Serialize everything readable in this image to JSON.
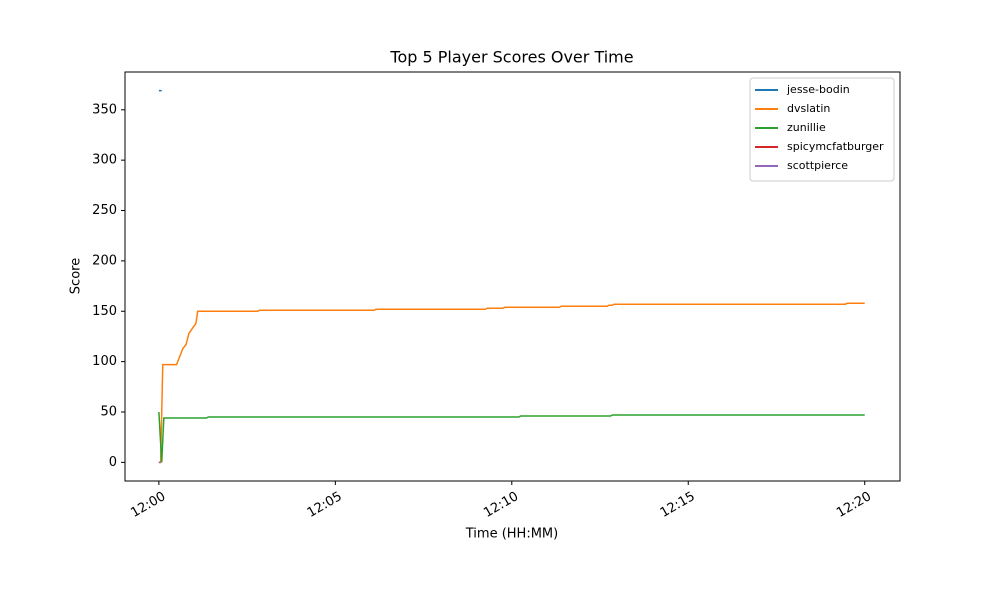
{
  "chart_data": {
    "type": "line",
    "title": "Top 5 Player Scores Over Time",
    "xlabel": "Time (HH:MM)",
    "ylabel": "Score",
    "xlim": [
      -0.96,
      21.0
    ],
    "ylim": [
      -18.5,
      387.5
    ],
    "xticks": [
      {
        "value": 0,
        "label": "12:00"
      },
      {
        "value": 5,
        "label": "12:05"
      },
      {
        "value": 10,
        "label": "12:10"
      },
      {
        "value": 15,
        "label": "12:15"
      },
      {
        "value": 20,
        "label": "12:20"
      }
    ],
    "yticks": [
      0,
      50,
      100,
      150,
      200,
      250,
      300,
      350
    ],
    "legend": "upper right",
    "series": [
      {
        "name": "jesse-bodin",
        "color": "#1f77b4",
        "x": [
          0,
          0.08
        ],
        "values": [
          369,
          369
        ]
      },
      {
        "name": "dvslatin",
        "color": "#ff7f0e",
        "x": [
          0,
          0.05,
          0.11,
          0.5,
          0.68,
          0.77,
          0.85,
          1.05,
          1.1,
          2.8,
          2.85,
          6.1,
          6.15,
          9.25,
          9.3,
          9.75,
          9.8,
          11.35,
          11.4,
          12.7,
          12.75,
          12.85,
          12.9,
          19.45,
          19.5,
          20.0
        ],
        "values": [
          0,
          0,
          97,
          97,
          113,
          117,
          128,
          138,
          150,
          150,
          151,
          151,
          152,
          152,
          153,
          153,
          154,
          154,
          155,
          155,
          156,
          156,
          157,
          157,
          158,
          158
        ]
      },
      {
        "name": "zunillie",
        "color": "#2ca02c",
        "x": [
          0,
          0.08,
          0.14,
          1.35,
          1.4,
          10.2,
          10.25,
          12.8,
          12.85,
          20.0
        ],
        "values": [
          50,
          0,
          44,
          44,
          45,
          45,
          46,
          46,
          47,
          47
        ]
      },
      {
        "name": "spicymcfatburger",
        "color": "#d62728",
        "x": [
          0,
          0.05
        ],
        "values": [
          0,
          0
        ]
      },
      {
        "name": "scottpierce",
        "color": "#9467bd",
        "x": [
          0,
          0.05
        ],
        "values": [
          0,
          0
        ]
      }
    ]
  }
}
